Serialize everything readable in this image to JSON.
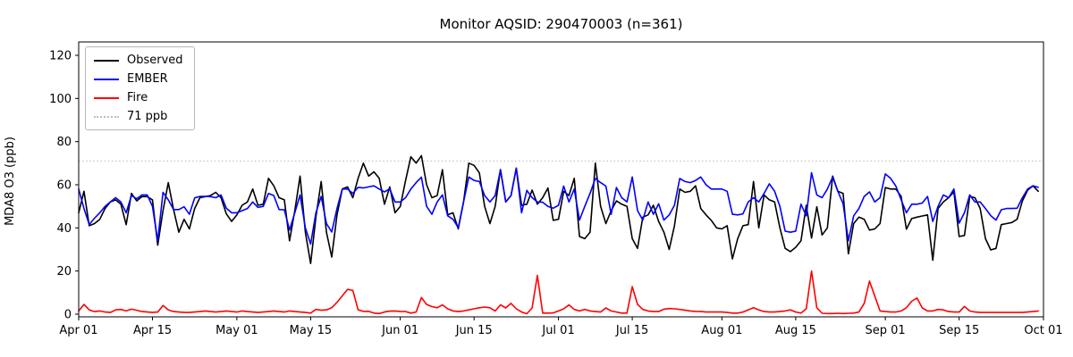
{
  "title": "Monitor AQSID: 290470003 (n=361)",
  "chart_data": {
    "type": "line",
    "title": "Monitor AQSID: 290470003 (n=361)",
    "xlabel": "",
    "ylabel": "MDA8 O3 (ppb)",
    "ylim": [
      -1,
      126
    ],
    "y_ticks": [
      0,
      20,
      40,
      60,
      80,
      100,
      120
    ],
    "x_tick_labels": [
      "Apr 01",
      "Apr 15",
      "May 01",
      "May 15",
      "Jun 01",
      "Jun 15",
      "Jul 01",
      "Jul 15",
      "Aug 01",
      "Aug 15",
      "Sep 01",
      "Sep 15",
      "Oct 01"
    ],
    "x_tick_days": [
      0,
      14,
      30,
      44,
      61,
      75,
      91,
      105,
      122,
      136,
      153,
      167,
      183
    ],
    "days_total": 183,
    "x_start": "Apr 01",
    "x_end": "Oct 01",
    "grid": false,
    "legend_position": "upper left",
    "threshold": {
      "label": "71 ppb",
      "value": 71,
      "color": "#c9c9c9",
      "style": "dotted"
    },
    "series": [
      {
        "name": "Observed",
        "color": "#000000",
        "values": [
          47,
          57,
          41,
          42,
          44,
          49,
          52,
          53,
          51,
          41.5,
          56,
          52.5,
          54.5,
          54.5,
          53,
          32,
          48,
          61,
          48.5,
          38,
          44,
          39.5,
          49,
          54,
          54.5,
          55,
          56.5,
          54,
          46.5,
          43,
          46,
          50.5,
          52,
          58,
          50.5,
          51,
          63,
          59.5,
          54,
          53,
          34,
          48,
          64,
          38,
          23.5,
          45,
          61.5,
          38,
          26.5,
          46,
          58,
          59,
          54,
          63,
          70,
          64,
          66,
          63,
          51,
          59,
          47,
          50,
          62,
          73,
          70,
          73.5,
          60,
          54,
          55,
          67,
          46,
          47,
          39.5,
          52,
          70,
          69,
          65.5,
          50,
          42,
          50,
          67,
          52,
          55,
          67.7,
          50.5,
          51,
          57.5,
          51,
          54,
          58.5,
          43.5,
          44,
          57,
          55,
          63,
          36,
          35,
          38,
          70,
          50,
          42,
          48,
          52.5,
          51,
          50,
          35,
          30.5,
          45,
          46,
          50.5,
          43,
          38,
          30,
          41,
          58,
          56.5,
          57,
          59.5,
          49,
          46,
          43.5,
          40,
          39.5,
          41,
          25.6,
          35,
          41,
          41.5,
          61.5,
          40,
          55.3,
          53,
          52,
          40,
          30.5,
          29,
          31,
          34,
          50.5,
          35.3,
          49.8,
          36.7,
          40,
          64,
          57,
          56,
          28,
          42,
          45,
          44,
          39,
          39.5,
          42,
          58.7,
          58,
          58,
          54.6,
          39.4,
          44.3,
          45,
          45.5,
          46,
          25,
          49,
          52,
          54,
          56.7,
          36,
          36.5,
          54.6,
          54,
          49,
          35,
          29.8,
          30.5,
          41.5,
          42,
          42.5,
          44,
          52.5,
          57.5,
          59.5,
          57
        ]
      },
      {
        "name": "EMBER",
        "color": "#0000ff",
        "values": [
          58,
          49,
          41.6,
          44.5,
          47,
          50,
          52,
          54,
          52,
          47,
          55,
          53.5,
          55.3,
          55.3,
          50,
          34,
          56.5,
          53,
          48.5,
          48.5,
          49.8,
          46.3,
          53.9,
          54.6,
          54.6,
          54.5,
          54,
          55.3,
          49.1,
          47,
          47,
          48,
          49,
          52,
          49.5,
          50,
          56,
          55,
          48.5,
          48.4,
          39,
          47,
          55.3,
          40,
          32.5,
          47,
          54.6,
          42,
          38.1,
          49,
          58,
          58,
          56,
          58.8,
          58.5,
          59,
          59.5,
          58,
          56.7,
          58.1,
          52,
          52,
          54,
          58,
          61,
          63.5,
          50,
          46.3,
          52,
          55.3,
          45.6,
          44,
          40.1,
          52,
          63.6,
          62,
          61.5,
          55,
          52,
          55,
          67,
          52,
          55,
          67.7,
          47,
          57.4,
          54,
          52,
          51.9,
          50,
          49.1,
          50.5,
          59.4,
          52,
          58,
          43.6,
          50,
          56,
          62.9,
          61,
          59.4,
          46.3,
          58.7,
          54,
          52,
          63.6,
          48,
          43.6,
          52,
          46.3,
          51.2,
          43.6,
          46,
          50.5,
          62.9,
          61.5,
          61,
          62,
          63.6,
          60,
          58,
          58,
          58,
          57,
          46.3,
          46,
          46.5,
          52,
          54,
          52,
          56,
          60.4,
          57,
          50,
          38.5,
          38,
          38.5,
          51,
          45.6,
          65.6,
          55.3,
          54,
          58,
          63.6,
          57,
          51.2,
          34,
          45.6,
          49,
          54.6,
          56.7,
          52,
          54,
          65,
          63,
          59.4,
          53,
          47,
          51,
          51,
          51.5,
          54.6,
          43,
          50,
          55.3,
          54,
          58,
          42.2,
          47,
          55.3,
          52,
          52,
          49,
          45.7,
          43.6,
          48.4,
          49,
          49,
          49.1,
          54,
          58,
          59.5,
          58.8
        ]
      },
      {
        "name": "Fire",
        "color": "#ff0000",
        "values": [
          1.5,
          4.5,
          2,
          1.2,
          1.5,
          1,
          0.8,
          2,
          2.2,
          1.5,
          2.3,
          1.8,
          1.2,
          1,
          0.8,
          1,
          4,
          2,
          1.2,
          1,
          0.8,
          0.8,
          1,
          1.2,
          1.5,
          1.2,
          1,
          1.2,
          1.5,
          1.2,
          1,
          1.5,
          1.2,
          1,
          0.8,
          1,
          1.2,
          1.5,
          1.2,
          1,
          1.5,
          1.2,
          1,
          0.8,
          0.5,
          2.2,
          1.8,
          2,
          3,
          5.5,
          8.5,
          11.5,
          11,
          2,
          1.3,
          1.3,
          0.5,
          0.3,
          1,
          1.4,
          1.5,
          1.3,
          1.2,
          0.5,
          1,
          7.7,
          4.5,
          3.5,
          3,
          4.3,
          2.5,
          1.5,
          1.2,
          1.5,
          2,
          2.5,
          3,
          3.3,
          3,
          1.5,
          4.3,
          2.9,
          5,
          2.5,
          1,
          0.2,
          2.9,
          18,
          0.5,
          0.5,
          0.6,
          1.5,
          2.5,
          4.3,
          2.2,
          1.5,
          2.2,
          1.5,
          1.2,
          1,
          2.9,
          1.5,
          1,
          0.5,
          0.5,
          12.8,
          4.5,
          2.2,
          1.5,
          1.2,
          1.2,
          2.3,
          2.6,
          2.5,
          2.2,
          1.8,
          1.5,
          1.3,
          1.2,
          1,
          1,
          1,
          1,
          0.8,
          0.5,
          0.5,
          1,
          2,
          3,
          2,
          1.2,
          1,
          1,
          1.2,
          1.5,
          2,
          1,
          0.5,
          2.5,
          20,
          3,
          0.4,
          0.3,
          0.3,
          0.4,
          0.3,
          0.4,
          0.5,
          1,
          5,
          15.3,
          8.4,
          1.5,
          1.2,
          1,
          1,
          1.5,
          3,
          6,
          7.5,
          2.9,
          1.5,
          1.5,
          2.2,
          2,
          1.2,
          1,
          1,
          3.6,
          1.5,
          1,
          0.8,
          0.8,
          0.8,
          0.8,
          0.8,
          0.8,
          0.8,
          0.8,
          0.8,
          1,
          1.2,
          1.5
        ]
      }
    ]
  },
  "legend": {
    "items": [
      {
        "label": "Observed",
        "color": "#000000",
        "style": "solid"
      },
      {
        "label": "EMBER",
        "color": "#0000ff",
        "style": "solid"
      },
      {
        "label": "Fire",
        "color": "#ff0000",
        "style": "solid"
      },
      {
        "label": "71 ppb",
        "color": "#c9c9c9",
        "style": "dotted"
      }
    ]
  }
}
